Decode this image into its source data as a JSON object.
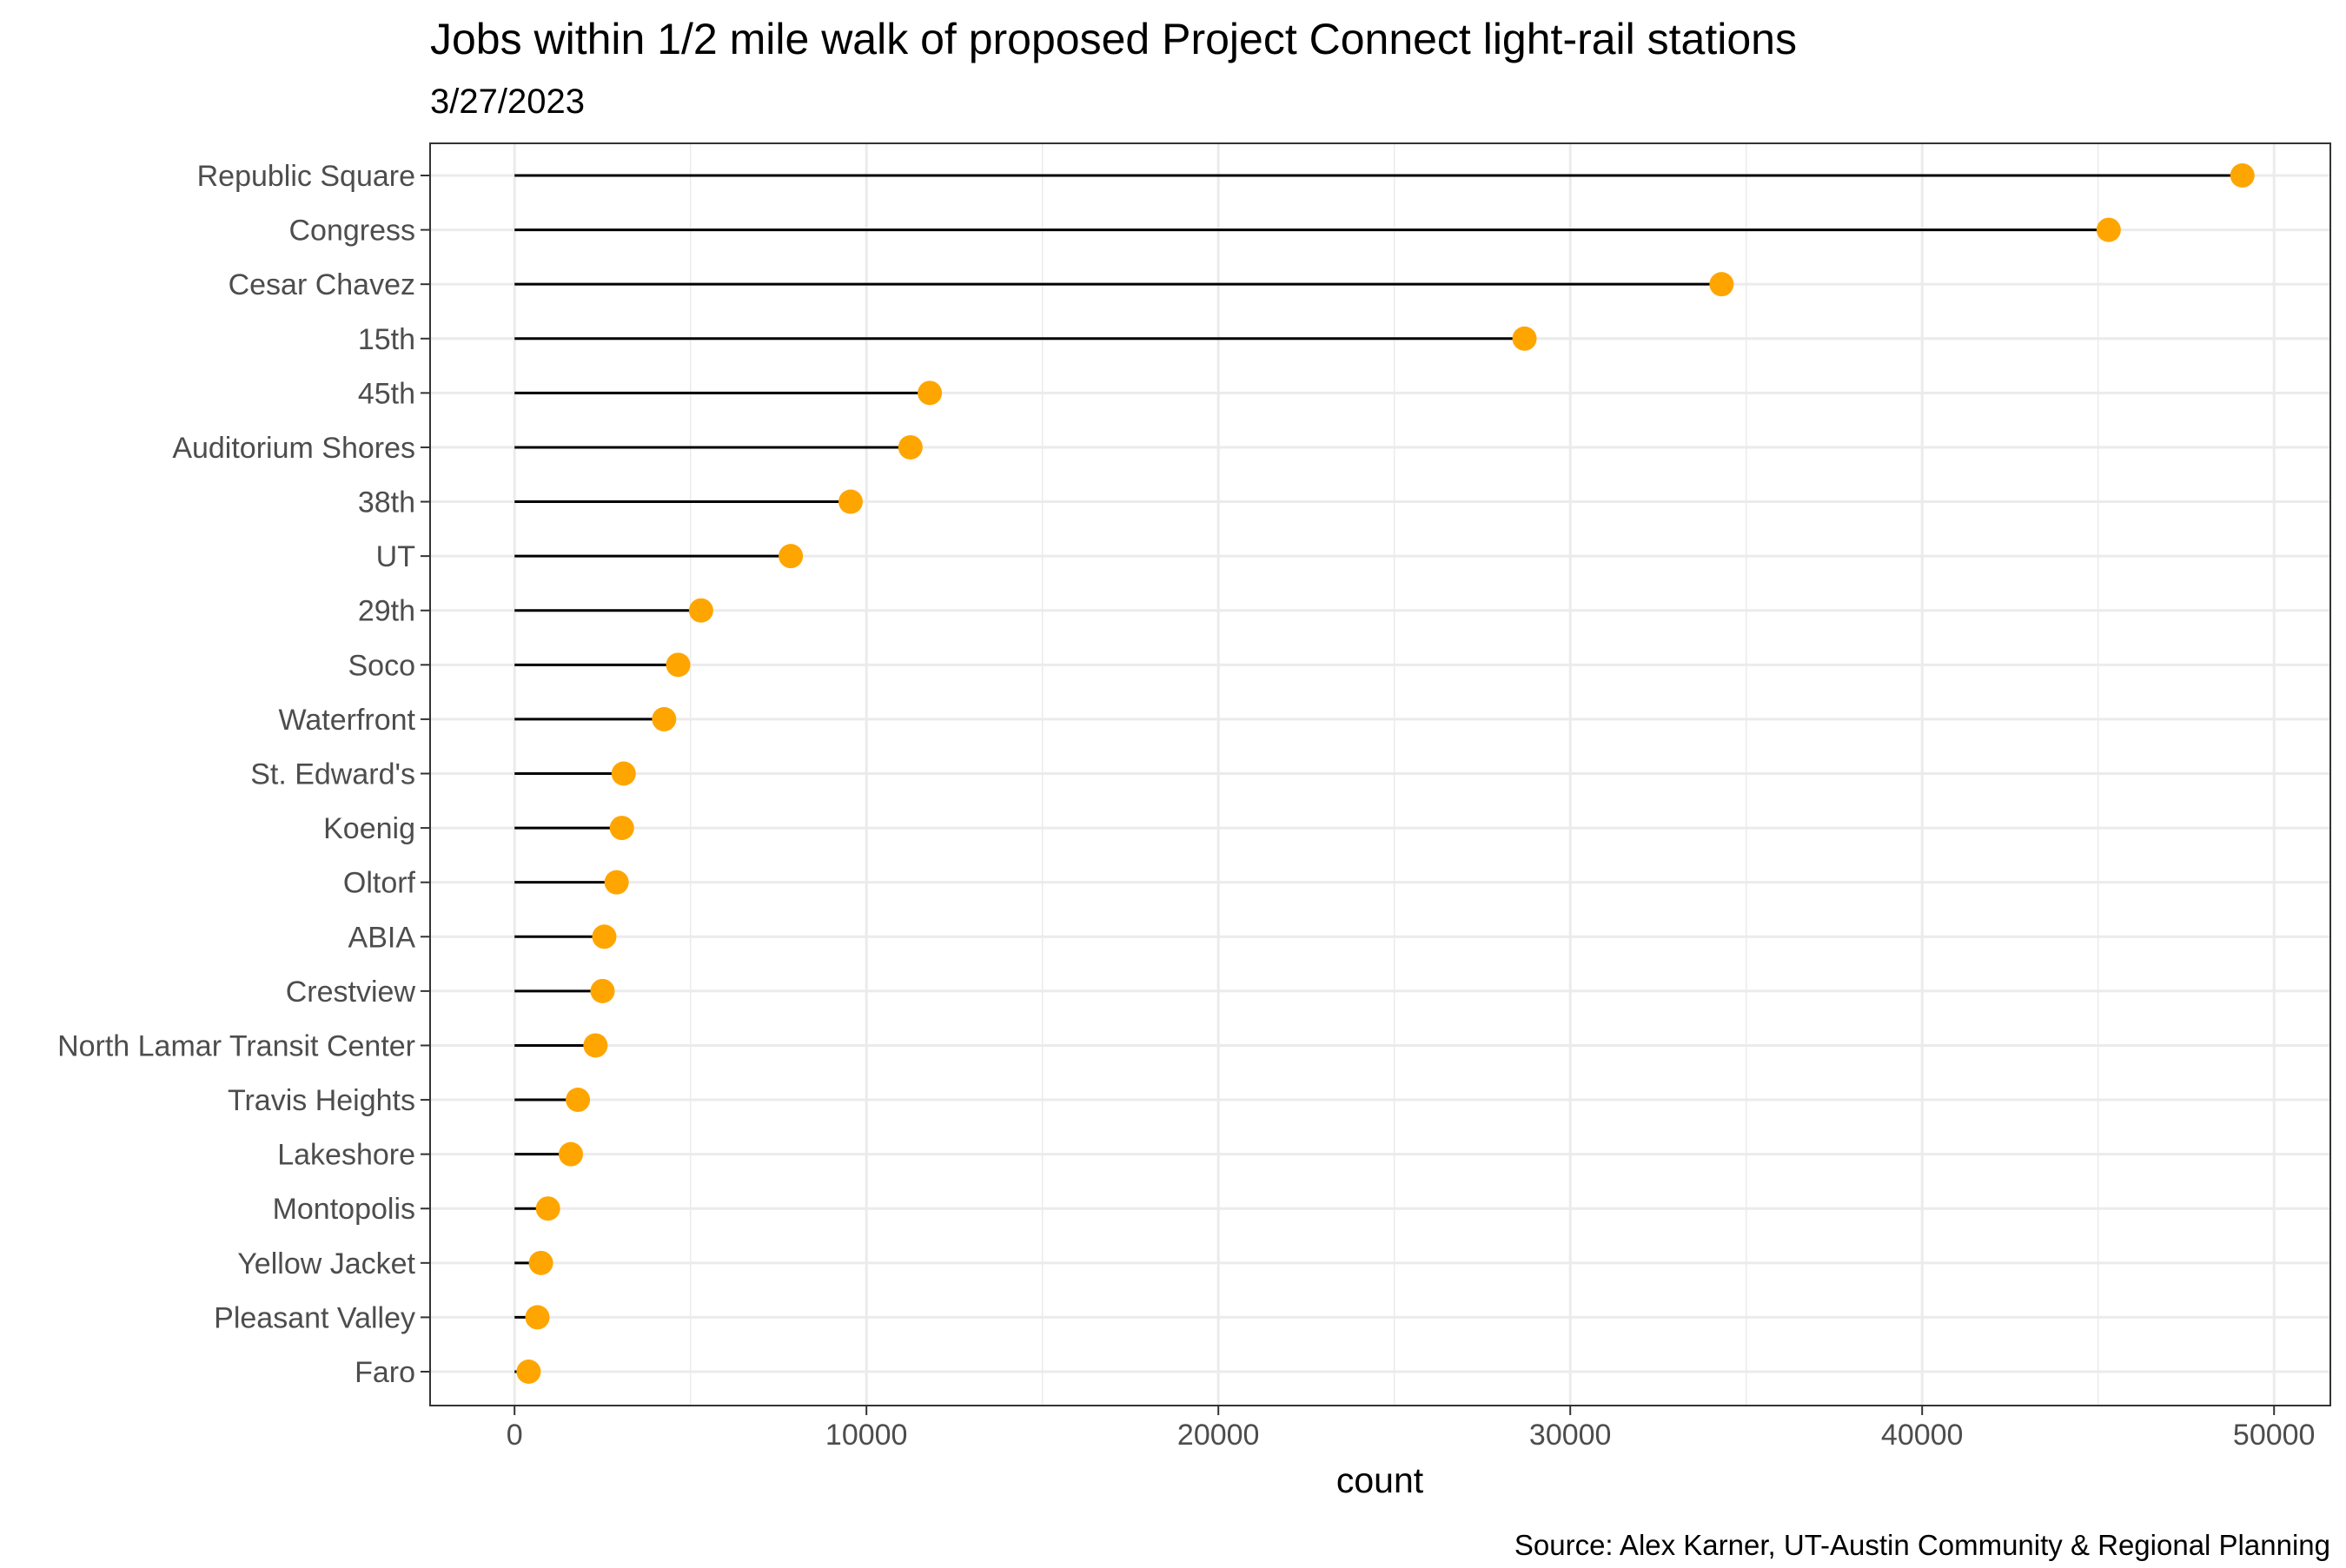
{
  "chart_data": {
    "type": "lollipop",
    "title": "Jobs within 1/2 mile walk of proposed Project Connect light-rail stations",
    "subtitle": "3/27/2023",
    "xlabel": "count",
    "ylabel": "",
    "caption": "Source: Alex Karner, UT-Austin Community & Regional Planning",
    "xlim": [
      -2400,
      51600
    ],
    "x_ticks": [
      0,
      10000,
      20000,
      30000,
      40000,
      50000
    ],
    "x_tick_labels": [
      "0",
      "10000",
      "20000",
      "30000",
      "40000",
      "50000"
    ],
    "grid": true,
    "categories": [
      "Republic Square",
      "Congress",
      "Cesar Chavez",
      "15th",
      "45th",
      "Auditorium Shores",
      "38th",
      "UT",
      "29th",
      "Soco",
      "Waterfront",
      "St. Edward's",
      "Koenig",
      "Oltorf",
      "ABIA",
      "Crestview",
      "North Lamar Transit Center",
      "Travis Heights",
      "Lakeshore",
      "Montopolis",
      "Yellow Jacket",
      "Pleasant Valley",
      "Faro"
    ],
    "values": [
      49100,
      45300,
      34300,
      28700,
      11800,
      11250,
      9550,
      7850,
      5300,
      4650,
      4250,
      3100,
      3050,
      2900,
      2550,
      2500,
      2300,
      1800,
      1600,
      950,
      750,
      650,
      400
    ],
    "colors": {
      "point": "#FFA500",
      "stem": "#000000",
      "grid": "#EBEBEB",
      "panel_border": "#333333",
      "tick_text": "#4d4d4d"
    }
  }
}
